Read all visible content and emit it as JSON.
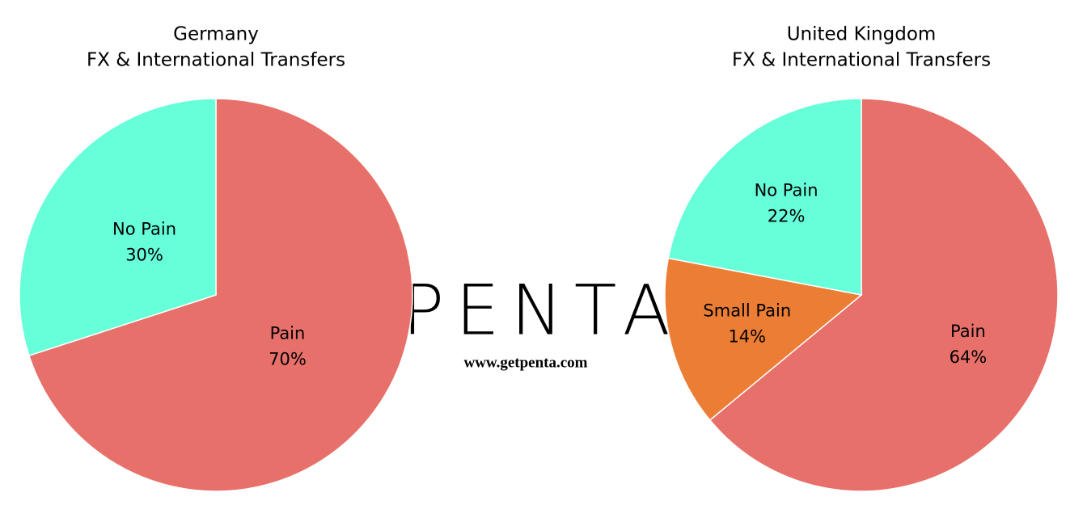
{
  "chart_data": [
    {
      "type": "pie",
      "title": [
        "Germany",
        "FX & International Transfers"
      ],
      "categories": [
        "Pain",
        "No Pain"
      ],
      "values": [
        70,
        30
      ],
      "value_labels": [
        "70%",
        "30%"
      ],
      "colors": [
        "#e8706a",
        "#66ffd9"
      ]
    },
    {
      "type": "pie",
      "title": [
        "United Kingdom",
        "FX & International Transfers"
      ],
      "categories": [
        "Pain",
        "Small Pain",
        "No Pain"
      ],
      "values": [
        64,
        14,
        22
      ],
      "value_labels": [
        "64%",
        "14%",
        "22%"
      ],
      "colors": [
        "#e8706a",
        "#ec7d35",
        "#66ffd9"
      ]
    }
  ],
  "logo": {
    "name": "PENTA",
    "url": "www.getpenta.com"
  }
}
